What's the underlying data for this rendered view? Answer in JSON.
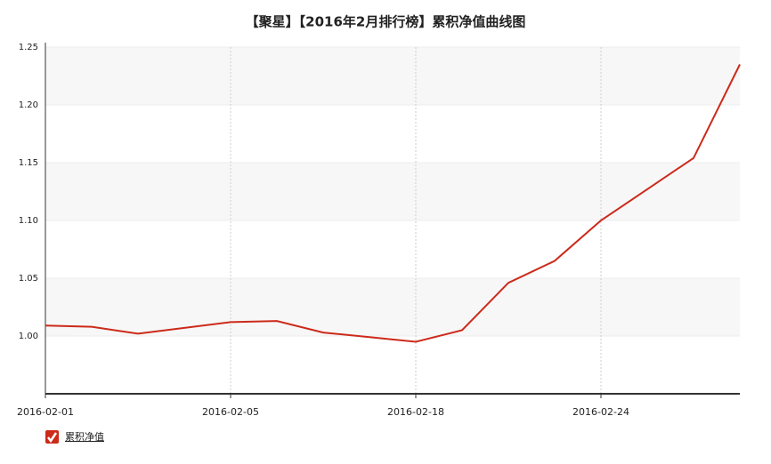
{
  "chart_data": {
    "type": "line",
    "title": "【聚星】【2016年2月排行榜】累积净值曲线图",
    "categories": [
      "2016-02-01",
      null,
      null,
      null,
      "2016-02-05",
      null,
      null,
      null,
      "2016-02-18",
      null,
      null,
      null,
      "2016-02-24",
      null,
      null,
      null
    ],
    "series": [
      {
        "name": "累积净值",
        "color": "#cc2a1a",
        "values": [
          1.009,
          1.008,
          1.002,
          1.007,
          1.012,
          1.013,
          1.003,
          0.999,
          0.995,
          1.005,
          1.046,
          1.065,
          1.1,
          1.127,
          1.154,
          1.235
        ]
      }
    ],
    "ylim": [
      0.95,
      1.25
    ],
    "yticks": [
      {
        "value": 1,
        "label": "1.00"
      },
      1.05,
      {
        "value": 1.1,
        "label": "1.10"
      },
      1.15,
      {
        "value": 1.2,
        "label": "1.20"
      },
      1.25
    ],
    "grid": true,
    "legend": "bottom-left"
  }
}
